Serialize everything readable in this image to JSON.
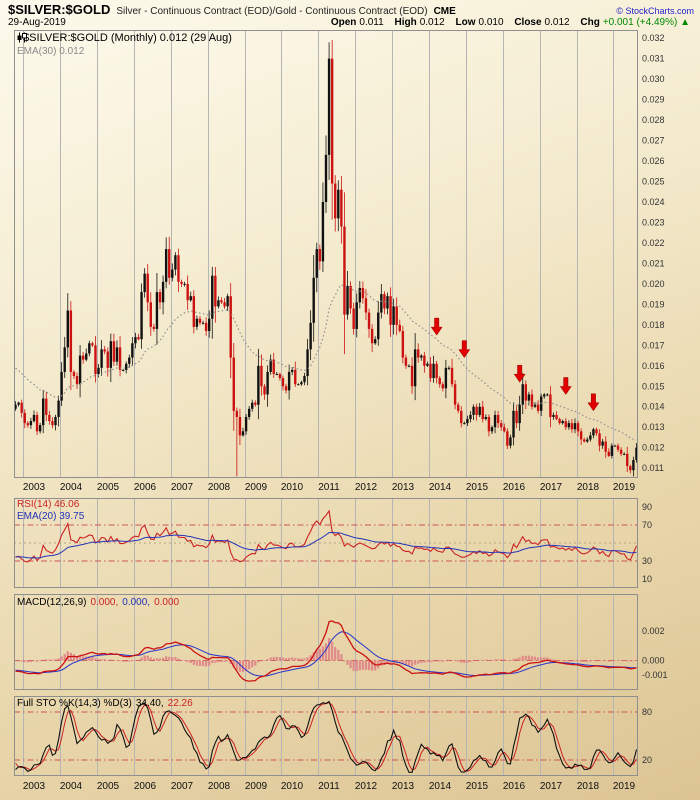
{
  "header": {
    "symbol": "$SILVER:$GOLD",
    "description": "Silver - Continuous Contract (EOD)/Gold - Continuous Contract (EOD)",
    "exchange": "CME",
    "copyright": "© StockCharts.com",
    "date": "29-Aug-2019",
    "quote": {
      "open_label": "Open",
      "open": "0.011",
      "high_label": "High",
      "high": "0.012",
      "low_label": "Low",
      "low": "0.010",
      "close_label": "Close",
      "close": "0.012",
      "chg_label": "Chg",
      "chg": "+0.001 (+4.49%)",
      "chg_arrow": "▲"
    }
  },
  "main": {
    "legend_line1": "$SILVER:$GOLD (Monthly) 0.012 (29 Aug)",
    "legend_line2": "EMA(30) 0.012"
  },
  "panels": {
    "rsi": {
      "legend1": "RSI(14) 46.06",
      "legend2": "EMA(20) 39.75",
      "ticks": [
        90,
        70,
        30,
        10
      ],
      "hlines": [
        70,
        30
      ]
    },
    "macd": {
      "legend_name": "MACD(12,26,9)",
      "v1": "0.000,",
      "v2": "0.000,",
      "v3": "0.000",
      "ticks": [
        0.002,
        0,
        -0.001
      ],
      "hlines": [
        0
      ]
    },
    "sto": {
      "legend_name": "Full STO %K(14,3) %D(3)",
      "v1": "34.40,",
      "v2": "22.26",
      "ticks": [
        80,
        20
      ],
      "hlines": [
        80,
        20
      ]
    }
  },
  "colors": {
    "up": "#111111",
    "down": "#cc1111",
    "ema30": "#8f8f8f",
    "rsi": "#cc2222",
    "rsi_ema": "#2233bb",
    "macd_line": "#cc1111",
    "macd_signal": "#2233cc",
    "macd_hist": "#e08a8a",
    "sto_k": "#111111",
    "sto_d": "#cc2222",
    "arrow": "#e00000",
    "grid": "#b5b5b5",
    "panel_border": "#8f8f8f",
    "hline": "#cc5555",
    "change_up": "#008800"
  },
  "chart_data": {
    "type": "candlestick",
    "symbol": "$SILVER:$GOLD",
    "timeframe": "Monthly",
    "title": "Silver - Continuous Contract (EOD)/Gold - Continuous Contract (EOD)",
    "ylim": [
      0.01052,
      0.0324
    ],
    "y_ticks": [
      0.011,
      0.012,
      0.013,
      0.014,
      0.015,
      0.016,
      0.017,
      0.018,
      0.019,
      0.02,
      0.021,
      0.022,
      0.023,
      0.024,
      0.025,
      0.026,
      0.027,
      0.028,
      0.029,
      0.03,
      0.031,
      0.032
    ],
    "x_years": [
      2003,
      2004,
      2005,
      2006,
      2007,
      2008,
      2009,
      2010,
      2011,
      2012,
      2013,
      2014,
      2015,
      2016,
      2017,
      2018,
      2019
    ],
    "pre_start_month": "2000-01",
    "pre_closes": [
      0.0184,
      0.018,
      0.0177,
      0.0179,
      0.0176,
      0.018,
      0.0178,
      0.0175,
      0.0178,
      0.0174,
      0.0172,
      0.0168,
      0.0174,
      0.0168,
      0.0162,
      0.0165,
      0.0163,
      0.016,
      0.0152,
      0.0155,
      0.0158,
      0.015,
      0.0151,
      0.0165,
      0.0158,
      0.0152,
      0.0151,
      0.0148,
      0.0153,
      0.0155,
      0.0152,
      0.0146,
      0.0139
    ],
    "start_month": "2002-10",
    "closes": [
      0.0141,
      0.0142,
      0.0137,
      0.0132,
      0.0131,
      0.0133,
      0.0136,
      0.0128,
      0.0131,
      0.0144,
      0.0136,
      0.0133,
      0.0131,
      0.0135,
      0.0143,
      0.0157,
      0.0169,
      0.0187,
      0.0157,
      0.0155,
      0.0151,
      0.0165,
      0.0163,
      0.0166,
      0.0171,
      0.017,
      0.0156,
      0.0159,
      0.0168,
      0.0167,
      0.0159,
      0.0172,
      0.0162,
      0.0169,
      0.0158,
      0.0158,
      0.0161,
      0.0164,
      0.0171,
      0.0174,
      0.0173,
      0.0196,
      0.0205,
      0.0191,
      0.0179,
      0.0178,
      0.0196,
      0.0191,
      0.0201,
      0.0217,
      0.0203,
      0.0207,
      0.0214,
      0.0201,
      0.02,
      0.02,
      0.0192,
      0.0194,
      0.0179,
      0.0183,
      0.0181,
      0.0181,
      0.0177,
      0.0183,
      0.0204,
      0.0189,
      0.0192,
      0.0191,
      0.0189,
      0.0194,
      0.0164,
      0.0138,
      0.0135,
      0.0126,
      0.0128,
      0.0135,
      0.0139,
      0.0142,
      0.0141,
      0.016,
      0.015,
      0.0146,
      0.0157,
      0.0163,
      0.0156,
      0.0156,
      0.0154,
      0.015,
      0.0148,
      0.0157,
      0.0158,
      0.0151,
      0.0151,
      0.0152,
      0.0155,
      0.0168,
      0.0181,
      0.0203,
      0.0217,
      0.0211,
      0.024,
      0.0263,
      0.031,
      0.0249,
      0.0232,
      0.0246,
      0.0228,
      0.0185,
      0.0199,
      0.0188,
      0.0178,
      0.0191,
      0.0198,
      0.0193,
      0.0186,
      0.0178,
      0.0171,
      0.0173,
      0.0186,
      0.0195,
      0.0188,
      0.0194,
      0.018,
      0.0189,
      0.018,
      0.0177,
      0.0164,
      0.016,
      0.016,
      0.015,
      0.0168,
      0.0164,
      0.0165,
      0.016,
      0.0161,
      0.0154,
      0.0161,
      0.0154,
      0.0151,
      0.0149,
      0.0159,
      0.0159,
      0.0151,
      0.0141,
      0.0138,
      0.0132,
      0.0132,
      0.0134,
      0.0136,
      0.014,
      0.0136,
      0.014,
      0.0134,
      0.0135,
      0.0128,
      0.013,
      0.0136,
      0.0132,
      0.013,
      0.0128,
      0.0121,
      0.0125,
      0.0138,
      0.0132,
      0.0141,
      0.0151,
      0.0143,
      0.0146,
      0.014,
      0.0141,
      0.0138,
      0.0145,
      0.0146,
      0.0146,
      0.0135,
      0.0136,
      0.0134,
      0.0132,
      0.0133,
      0.013,
      0.0132,
      0.0129,
      0.0132,
      0.0128,
      0.0124,
      0.0123,
      0.0124,
      0.0126,
      0.0129,
      0.0127,
      0.0121,
      0.0123,
      0.0118,
      0.0116,
      0.0121,
      0.0121,
      0.0119,
      0.0117,
      0.0117,
      0.0111,
      0.0109,
      0.0114,
      0.012
    ],
    "wick_overrides": {
      "2011-04": {
        "h": 0.0318
      },
      "2008-10": {
        "l": 0.0106
      }
    },
    "overlays": {
      "ema_period": 30
    },
    "indicators": {
      "rsi": {
        "period": 14,
        "ema_period": 20,
        "range": [
          0,
          100
        ]
      },
      "macd": {
        "fast": 12,
        "slow": 26,
        "signal": 9,
        "range": [
          -0.002,
          0.0045
        ]
      },
      "sto": {
        "k": 14,
        "k_smooth": 3,
        "d": 3,
        "range": [
          0,
          100
        ]
      }
    },
    "arrows": [
      {
        "month": "2014-03",
        "value": 0.0175
      },
      {
        "month": "2014-12",
        "value": 0.0164
      },
      {
        "month": "2016-06",
        "value": 0.0152
      },
      {
        "month": "2017-09",
        "value": 0.0146
      },
      {
        "month": "2018-06",
        "value": 0.0138
      }
    ]
  }
}
